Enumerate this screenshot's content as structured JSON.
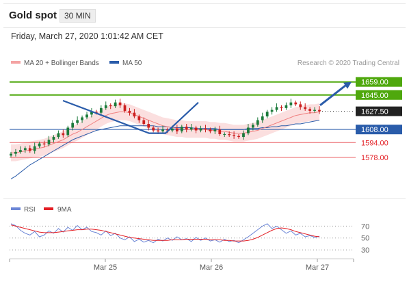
{
  "header": {
    "title": "Gold spot",
    "timeframe": "30 MIN",
    "datetime": "Friday, March 27, 2020 1:01:42 AM CET"
  },
  "colors": {
    "green": "#4fa80d",
    "red": "#e31e24",
    "blue_line": "#2a5caa",
    "dark_box": "#222222",
    "ma20": "#f08080",
    "bollinger_fill": "#fbdcdc",
    "ma50": "#2a5caa",
    "candle_up": "#1a7a3a",
    "candle_down": "#cc1f1f",
    "rsi": "#6b86d6",
    "ma9": "#e31e24"
  },
  "chart_data": [
    {
      "type": "candlestick",
      "legend": [
        "MA 20 + Bollinger Bands",
        "MA 50"
      ],
      "credit": "Research © 2020 Trading Central",
      "ylim": [
        1545,
        1672
      ],
      "x_ticks": [
        "Mar 25",
        "Mar 26",
        "Mar 27"
      ],
      "levels": [
        {
          "value": 1659.0,
          "label": "1659.00",
          "kind": "resistance",
          "color": "green"
        },
        {
          "value": 1645.0,
          "label": "1645.00",
          "kind": "resistance",
          "color": "green"
        },
        {
          "value": 1627.5,
          "label": "1627.50",
          "kind": "last",
          "color": "dark_box"
        },
        {
          "value": 1608.0,
          "label": "1608.00",
          "kind": "pivot",
          "color": "blue_line"
        },
        {
          "value": 1594.0,
          "label": "1594.00",
          "kind": "support",
          "color": "red"
        },
        {
          "value": 1578.0,
          "label": "1578.00",
          "kind": "support",
          "color": "red"
        }
      ],
      "trendline": [
        [
          0.14,
          1639
        ],
        [
          0.35,
          1604
        ],
        [
          0.39,
          1604
        ],
        [
          0.47,
          1637
        ]
      ],
      "close": [
        1582,
        1584,
        1586,
        1588,
        1585,
        1590,
        1593,
        1592,
        1597,
        1600,
        1604,
        1602,
        1610,
        1615,
        1618,
        1621,
        1624,
        1627,
        1626,
        1631,
        1634,
        1633,
        1637,
        1634,
        1628,
        1626,
        1622,
        1618,
        1614,
        1610,
        1607,
        1606,
        1608,
        1607,
        1609,
        1606,
        1611,
        1608,
        1610,
        1607,
        1609,
        1608,
        1606,
        1608,
        1603,
        1603,
        1602,
        1601,
        1600,
        1604,
        1610,
        1613,
        1618,
        1622,
        1627,
        1629,
        1632,
        1631,
        1634,
        1637,
        1635,
        1632,
        1630,
        1628,
        1629,
        1627.5
      ],
      "ma20": [
        1583,
        1583,
        1584,
        1585,
        1586,
        1587,
        1588,
        1589,
        1591,
        1593,
        1595,
        1597,
        1600,
        1603,
        1605,
        1608,
        1611,
        1614,
        1617,
        1620,
        1623,
        1625,
        1626,
        1627,
        1627,
        1626,
        1624,
        1622,
        1620,
        1618,
        1616,
        1614,
        1612,
        1611,
        1610,
        1609,
        1609,
        1608,
        1608,
        1608,
        1608,
        1608,
        1607,
        1607,
        1606,
        1606,
        1605,
        1604,
        1604,
        1604,
        1605,
        1606,
        1607,
        1609,
        1611,
        1613,
        1615,
        1617,
        1619,
        1621,
        1623,
        1624,
        1625,
        1626,
        1626,
        1627
      ],
      "ma50": [
        1555,
        1558,
        1562,
        1566,
        1570,
        1573,
        1576,
        1579,
        1582,
        1585,
        1588,
        1591,
        1594,
        1597,
        1599,
        1601,
        1603,
        1605,
        1607,
        1608,
        1609,
        1610,
        1611,
        1612,
        1612,
        1612,
        1612,
        1612,
        1612,
        1612,
        1612,
        1611,
        1611,
        1611,
        1610,
        1610,
        1610,
        1610,
        1610,
        1609,
        1609,
        1609,
        1609,
        1609,
        1608,
        1608,
        1608,
        1608,
        1608,
        1608,
        1609,
        1609,
        1609,
        1610,
        1610,
        1611,
        1611,
        1612,
        1612,
        1613,
        1614,
        1614,
        1615,
        1616,
        1617,
        1618
      ]
    },
    {
      "type": "line",
      "legend": [
        "RSI",
        "9MA"
      ],
      "ylim": [
        22,
        82
      ],
      "y_ticks": [
        70,
        50,
        30
      ],
      "x_ticks": [
        "Mar 25",
        "Mar 26",
        "Mar 27"
      ],
      "series": [
        {
          "name": "RSI",
          "values": [
            74,
            71,
            63,
            58,
            55,
            61,
            52,
            55,
            62,
            58,
            66,
            60,
            68,
            63,
            71,
            64,
            68,
            61,
            59,
            55,
            62,
            54,
            58,
            50,
            47,
            52,
            44,
            48,
            43,
            46,
            42,
            48,
            45,
            50,
            46,
            52,
            47,
            49,
            44,
            51,
            46,
            50,
            45,
            47,
            43,
            48,
            44,
            46,
            42,
            47,
            52,
            58,
            64,
            70,
            74,
            66,
            70,
            64,
            58,
            62,
            55,
            58,
            52,
            54,
            51,
            53
          ]
        },
        {
          "name": "9MA",
          "values": [
            72,
            70,
            68,
            66,
            64,
            62,
            60,
            59,
            59,
            59,
            60,
            61,
            62,
            63,
            64,
            64,
            65,
            65,
            64,
            63,
            61,
            59,
            57,
            55,
            53,
            51,
            50,
            49,
            48,
            47,
            46,
            46,
            46,
            46,
            47,
            47,
            47,
            48,
            48,
            48,
            48,
            48,
            47,
            47,
            47,
            46,
            46,
            45,
            45,
            45,
            46,
            48,
            51,
            55,
            59,
            63,
            66,
            67,
            66,
            64,
            61,
            59,
            57,
            55,
            53,
            52
          ]
        }
      ]
    }
  ]
}
